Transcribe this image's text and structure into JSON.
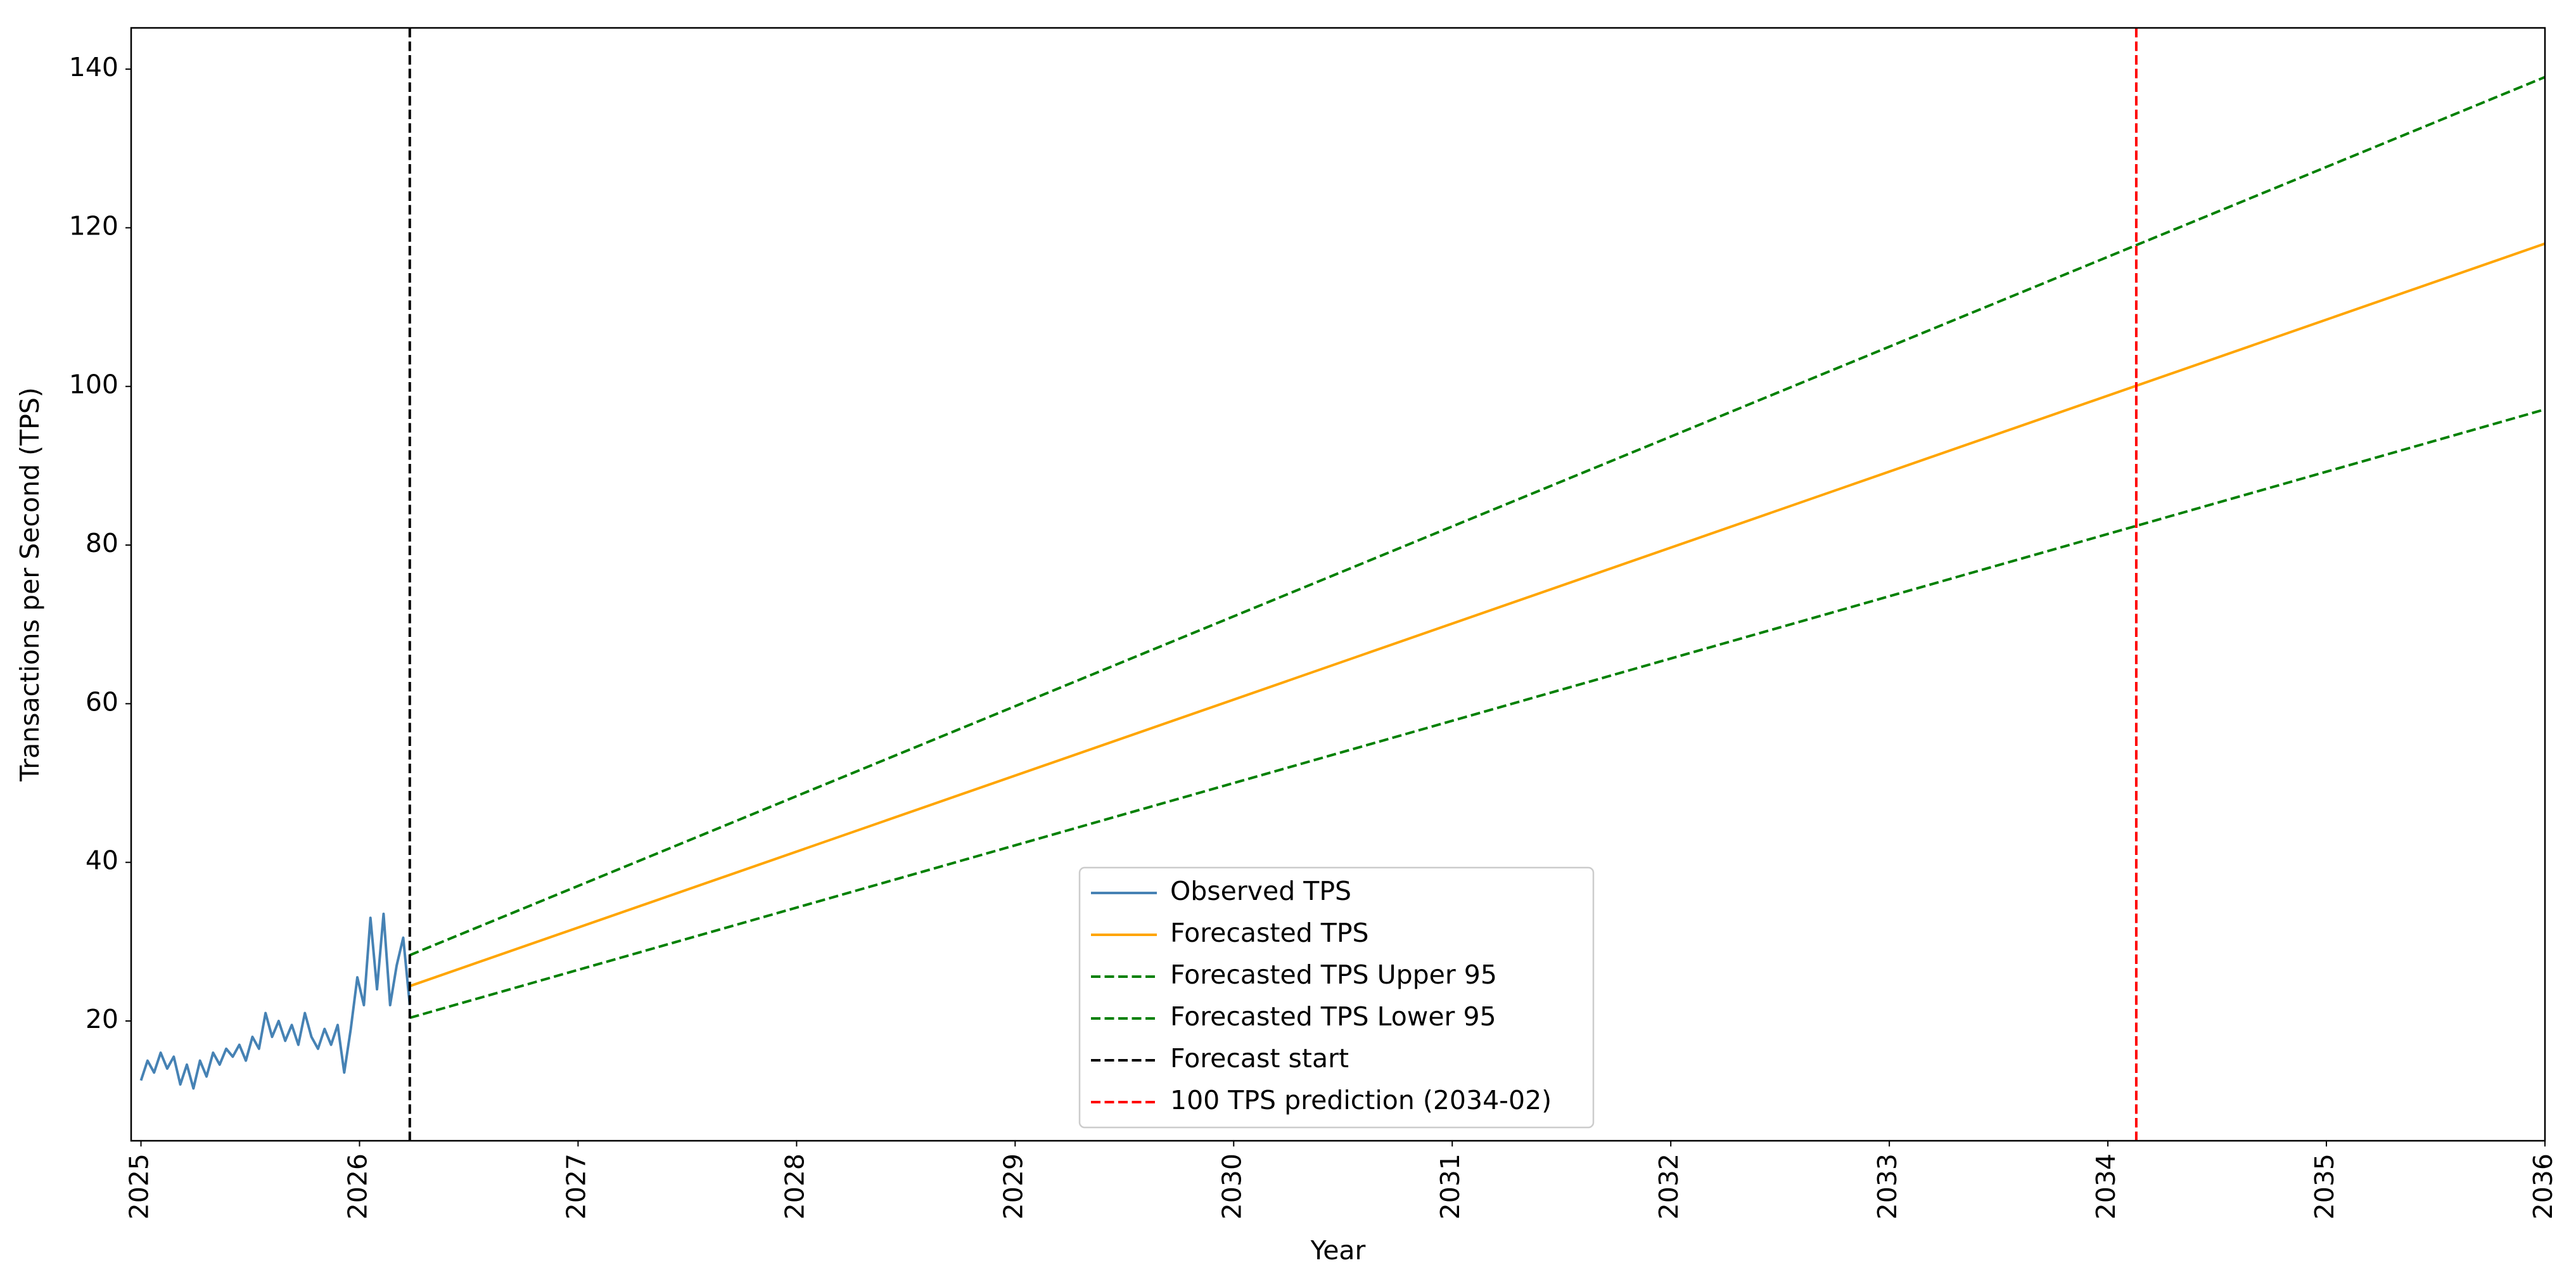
{
  "chart_data": {
    "type": "line",
    "x_label": "Year",
    "y_label": "Transactions per Second (TPS)",
    "xlim": [
      2024.955,
      2036
    ],
    "ylim": [
      4.9,
      145.2
    ],
    "xticks": [
      2025,
      2026,
      2027,
      2028,
      2029,
      2030,
      2031,
      2032,
      2033,
      2034,
      2035,
      2036
    ],
    "yticks": [
      20,
      40,
      60,
      80,
      100,
      120,
      140
    ],
    "grid": false,
    "legend": "lower center",
    "series": [
      {
        "name": "Observed TPS",
        "color": "#4682b4",
        "style": "solid",
        "x": [
          2025.0,
          2025.03,
          2025.06,
          2025.09,
          2025.12,
          2025.15,
          2025.18,
          2025.21,
          2025.24,
          2025.27,
          2025.3,
          2025.33,
          2025.36,
          2025.39,
          2025.42,
          2025.45,
          2025.48,
          2025.51,
          2025.54,
          2025.57,
          2025.6,
          2025.63,
          2025.66,
          2025.69,
          2025.72,
          2025.75,
          2025.78,
          2025.81,
          2025.84,
          2025.87,
          2025.9,
          2025.93,
          2025.96,
          2025.99,
          2026.02,
          2026.05,
          2026.08,
          2026.11,
          2026.14,
          2026.17,
          2026.2,
          2026.23
        ],
        "values": [
          12.5,
          15,
          13.5,
          16,
          14,
          15.5,
          12,
          14.5,
          11.5,
          15,
          13,
          16,
          14.5,
          16.5,
          15.5,
          17,
          15,
          18,
          16.5,
          21,
          18,
          20,
          17.5,
          19.5,
          17,
          21,
          18,
          16.5,
          19,
          17,
          19.5,
          13.5,
          19,
          25.5,
          22,
          33,
          24,
          33.5,
          22,
          27,
          30.5,
          22
        ]
      },
      {
        "name": "Forecasted TPS",
        "color": "#ffa500",
        "style": "solid",
        "x": [
          2026.23,
          2036
        ],
        "values": [
          24.4,
          118
        ]
      },
      {
        "name": "Forecasted TPS Upper 95",
        "color": "#008000",
        "style": "dashed",
        "x": [
          2026.23,
          2036
        ],
        "values": [
          28.3,
          139
        ]
      },
      {
        "name": "Forecasted TPS Lower 95",
        "color": "#008000",
        "style": "dashed",
        "x": [
          2026.23,
          2036
        ],
        "values": [
          20.4,
          97.1
        ]
      }
    ],
    "vlines": [
      {
        "name": "Forecast start",
        "color": "#000000",
        "x": 2026.23
      },
      {
        "name": "100 TPS prediction (2034-02)",
        "color": "#ff0000",
        "x": 2034.13
      }
    ]
  }
}
